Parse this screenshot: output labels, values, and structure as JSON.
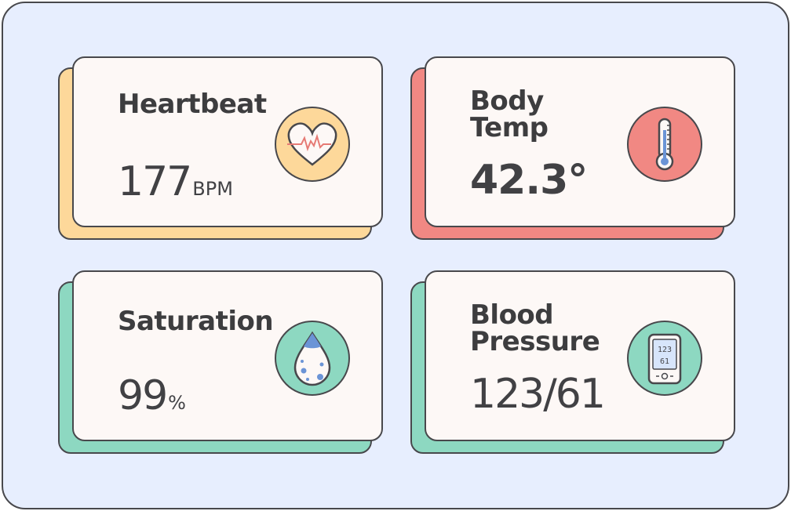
{
  "colors": {
    "background": "#e7eefe",
    "card_face": "#fdf8f6",
    "heartbeat_accent": "#fdd89a",
    "temp_accent": "#f18883",
    "saturation_accent": "#8dd8c1",
    "pressure_accent": "#8dd8c1",
    "outline": "#48484c"
  },
  "cards": {
    "heartbeat": {
      "title": "Heartbeat",
      "value": "177",
      "unit": "BPM",
      "icon": "heart-pulse-icon"
    },
    "body_temp": {
      "title_line1": "Body",
      "title_line2": "Temp",
      "value": "42.3°",
      "icon": "thermometer-icon"
    },
    "saturation": {
      "title": "Saturation",
      "value": "99",
      "unit": "%",
      "icon": "oxygen-drop-icon"
    },
    "blood_pressure": {
      "title_line1": "Blood",
      "title_line2": "Pressure",
      "value": "123/61",
      "icon": "blood-pressure-monitor-icon",
      "display_line1": "123",
      "display_line2": "61"
    }
  }
}
